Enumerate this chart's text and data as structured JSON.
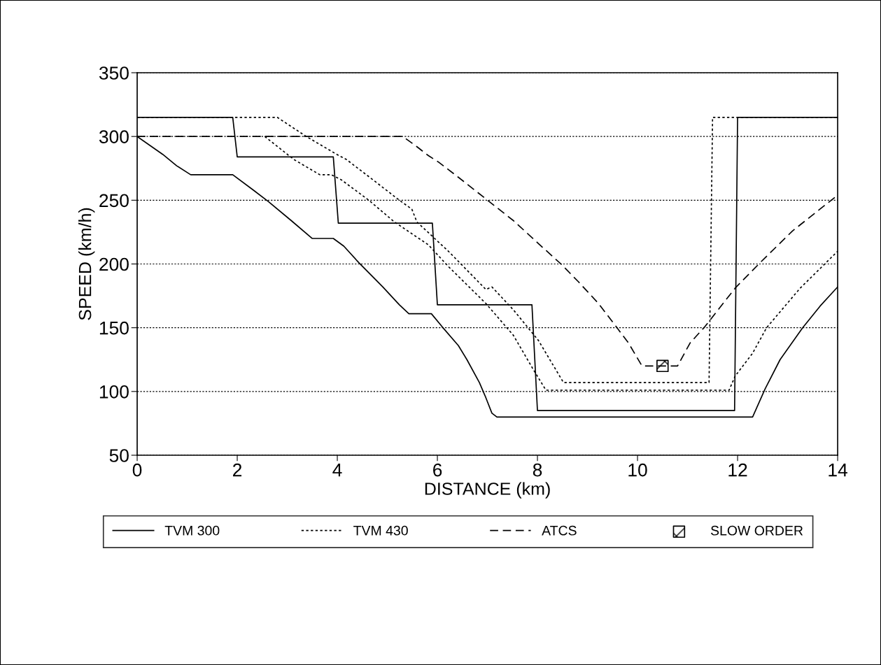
{
  "chart_data": {
    "type": "line",
    "xlabel": "DISTANCE (km)",
    "ylabel": "SPEED (km/h)",
    "xlim": [
      0,
      14
    ],
    "ylim": [
      50,
      350
    ],
    "xticks": [
      0,
      2,
      4,
      6,
      8,
      10,
      12,
      14
    ],
    "yticks": [
      50,
      100,
      150,
      200,
      250,
      300,
      350
    ],
    "grid": "y",
    "legend": "bottom",
    "series": [
      {
        "name": "TVM 300",
        "color": "#000000",
        "line_style": "solid",
        "x": [
          0,
          1.91,
          2.0,
          3.92,
          4.02,
          5.9,
          6.0,
          7.89,
          8.0,
          11.94,
          12.0,
          14
        ],
        "values": [
          315,
          315,
          284,
          284,
          232,
          232,
          168,
          168,
          85,
          85,
          315,
          315
        ]
      },
      {
        "color": "#000000",
        "line_style": "solid",
        "x": [
          0,
          0.51,
          0.79,
          1.07,
          1.91,
          2.32,
          2.62,
          3.08,
          3.5,
          3.92,
          4.13,
          4.43,
          4.91,
          5.24,
          5.43,
          5.88,
          6.09,
          6.42,
          6.59,
          6.84,
          6.97,
          7.09,
          7.19,
          12.3,
          12.55,
          12.85,
          13.3,
          13.65,
          14
        ],
        "values": [
          300,
          286,
          277,
          270,
          270,
          258,
          249,
          234,
          220,
          220,
          214,
          201,
          182,
          168,
          161,
          161,
          151,
          136,
          125,
          107,
          95,
          83,
          80,
          80,
          102,
          125,
          150,
          167,
          182
        ]
      },
      {
        "name": "TVM 430",
        "color": "#000000",
        "line_style": "dotted",
        "x": [
          0,
          2.8,
          3.38,
          4.03,
          4.18,
          4.68,
          5.24,
          5.49,
          5.59,
          6.22,
          6.97,
          7.09,
          7.52,
          8.02,
          8.52,
          11.43,
          11.5,
          14
        ],
        "values": [
          315,
          315,
          300,
          285,
          282,
          267,
          250,
          243,
          233,
          210,
          180,
          182,
          164,
          140,
          107,
          107,
          315,
          315
        ]
      },
      {
        "color": "#000000",
        "line_style": "dotted",
        "x": [
          2.55,
          3.13,
          3.65,
          3.88,
          4.08,
          4.63,
          5.14,
          5.82,
          6.22,
          6.97,
          7.52,
          7.92,
          8.17,
          11.83,
          11.95,
          12.3,
          12.58,
          13.25,
          14
        ],
        "values": [
          300,
          282,
          270,
          270,
          266,
          250,
          233,
          215,
          198,
          169,
          144,
          117,
          101,
          101,
          112,
          130,
          150,
          181,
          210
        ]
      },
      {
        "name": "ATCS",
        "color": "#000000",
        "line_style": "dashed",
        "x": [
          0,
          5.31,
          5.59,
          5.82,
          6.02,
          6.42,
          6.97,
          7.52,
          8.02,
          8.47,
          8.82,
          9.22,
          9.57,
          9.82,
          10.09,
          10.8,
          11.05,
          11.35,
          11.95,
          12.45,
          13.1,
          14
        ],
        "values": [
          300,
          300,
          292,
          285,
          280,
          268,
          251,
          234,
          216,
          200,
          186,
          169,
          151,
          138,
          120,
          120,
          138,
          151,
          181,
          201,
          226,
          254
        ]
      },
      {
        "name": "SLOW ORDER",
        "type": "scatter",
        "color": "#000000",
        "marker": "square",
        "x": [
          10.5
        ],
        "values": [
          120
        ]
      }
    ]
  }
}
